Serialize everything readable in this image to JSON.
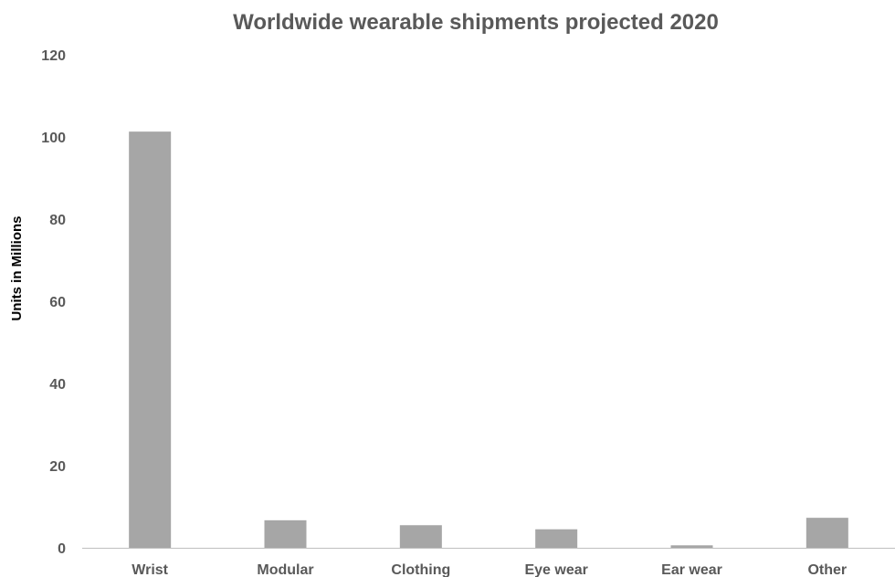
{
  "chart_data": {
    "type": "bar",
    "title": "Worldwide wearable shipments projected 2020",
    "xlabel": "",
    "ylabel": "Units in Millions",
    "categories": [
      "Wrist",
      "Modular",
      "Clothing",
      "Eye wear",
      "Ear wear",
      "Other"
    ],
    "values": [
      101.3,
      6.7,
      5.5,
      4.5,
      0.6,
      7.3
    ],
    "ylim": [
      0,
      120
    ],
    "yticks": [
      "0",
      "20",
      "40",
      "60",
      "80",
      "100",
      "120"
    ],
    "grid": false,
    "legend": "none",
    "bar_color": "#a6a6a6",
    "axis_color": "#bfbfbf",
    "text_color": "#595959"
  }
}
